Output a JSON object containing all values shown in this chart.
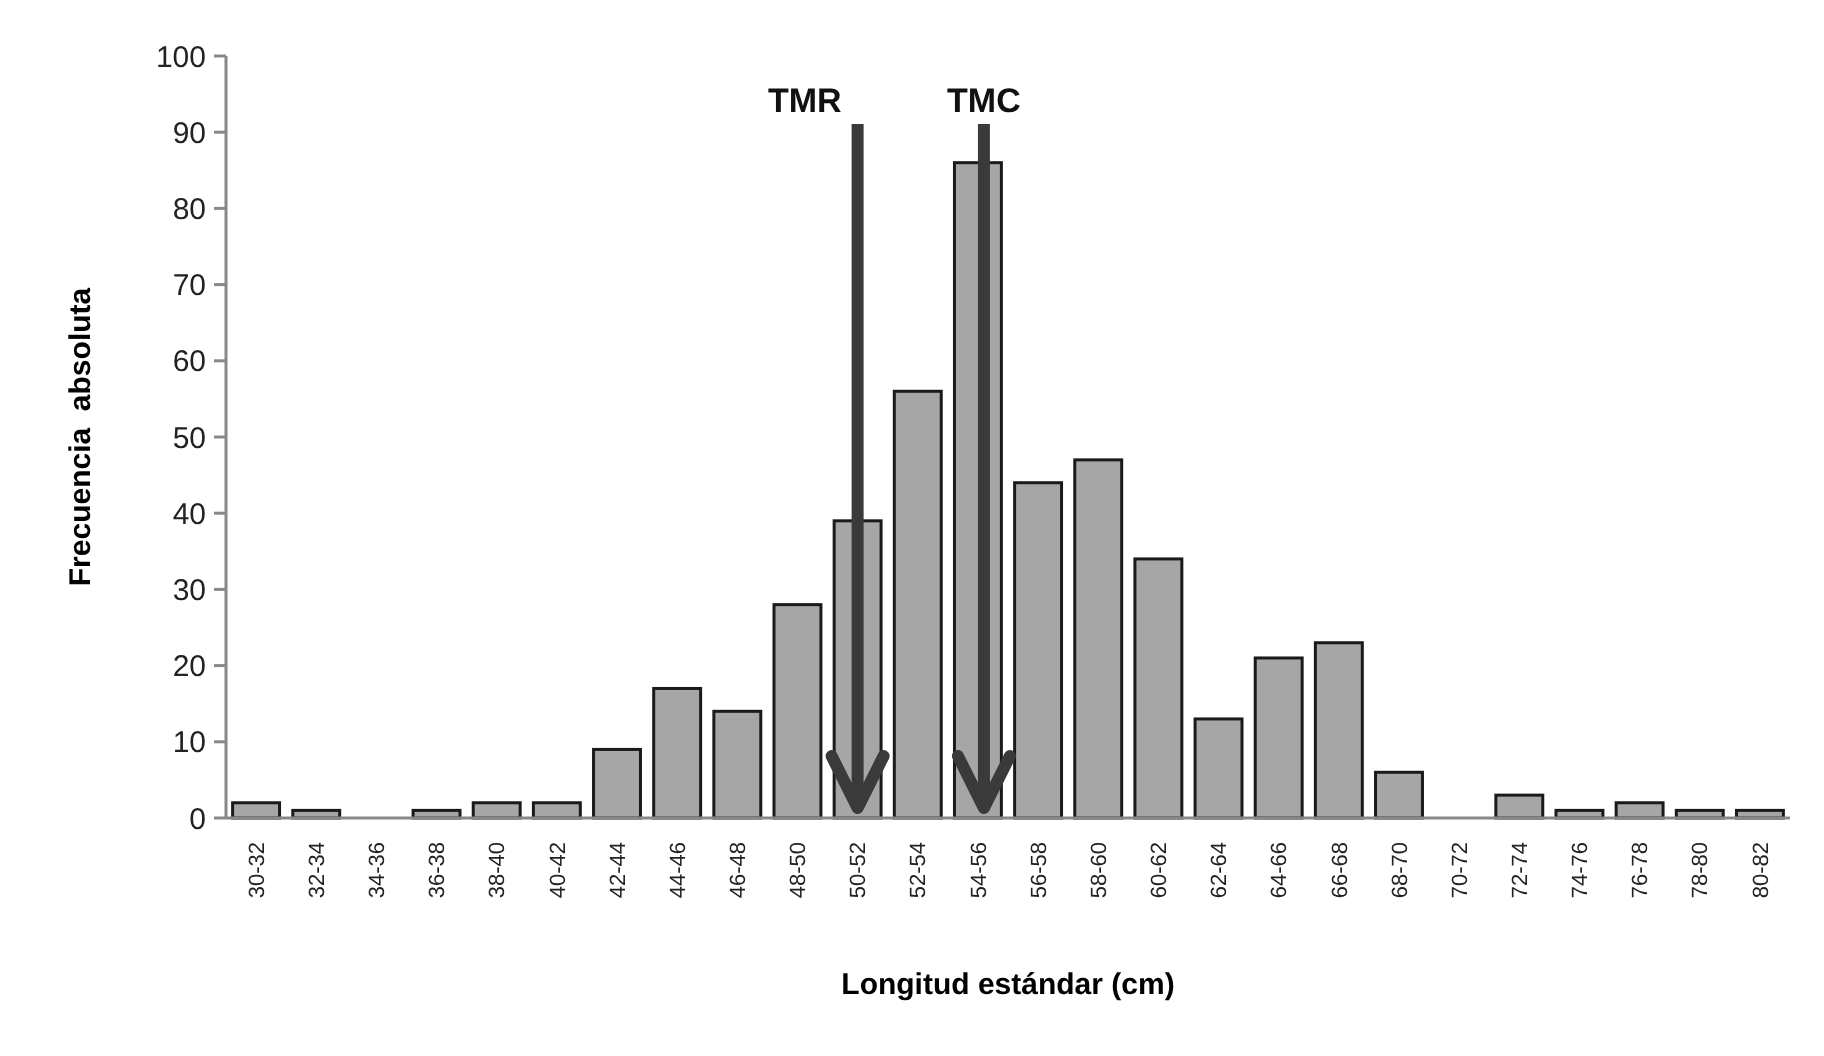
{
  "chart_data": {
    "type": "bar",
    "xlabel": "Longitud estándar (cm)",
    "ylabel": "Frecuencia  absoluta",
    "categories": [
      "30-32",
      "32-34",
      "34-36",
      "36-38",
      "38-40",
      "40-42",
      "42-44",
      "44-46",
      "46-48",
      "48-50",
      "50-52",
      "52-54",
      "54-56",
      "56-58",
      "58-60",
      "60-62",
      "62-64",
      "64-66",
      "66-68",
      "68-70",
      "70-72",
      "72-74",
      "74-76",
      "76-78",
      "78-80",
      "80-82"
    ],
    "values": [
      2,
      1,
      0,
      1,
      2,
      2,
      9,
      17,
      14,
      28,
      39,
      56,
      86,
      44,
      47,
      34,
      13,
      21,
      23,
      6,
      0,
      3,
      1,
      2,
      1,
      1
    ],
    "color": "#a6a6a6",
    "ylim": [
      0,
      100
    ],
    "yticks": [
      0,
      10,
      20,
      30,
      40,
      50,
      60,
      70,
      80,
      90,
      100
    ],
    "ref_lines": [
      {
        "axis": "x",
        "value": "50-52",
        "label": "TMR",
        "color": "#3a3a3a"
      },
      {
        "axis": "x",
        "value": "54-56",
        "label": "TMC",
        "color": "#3a3a3a"
      }
    ]
  }
}
